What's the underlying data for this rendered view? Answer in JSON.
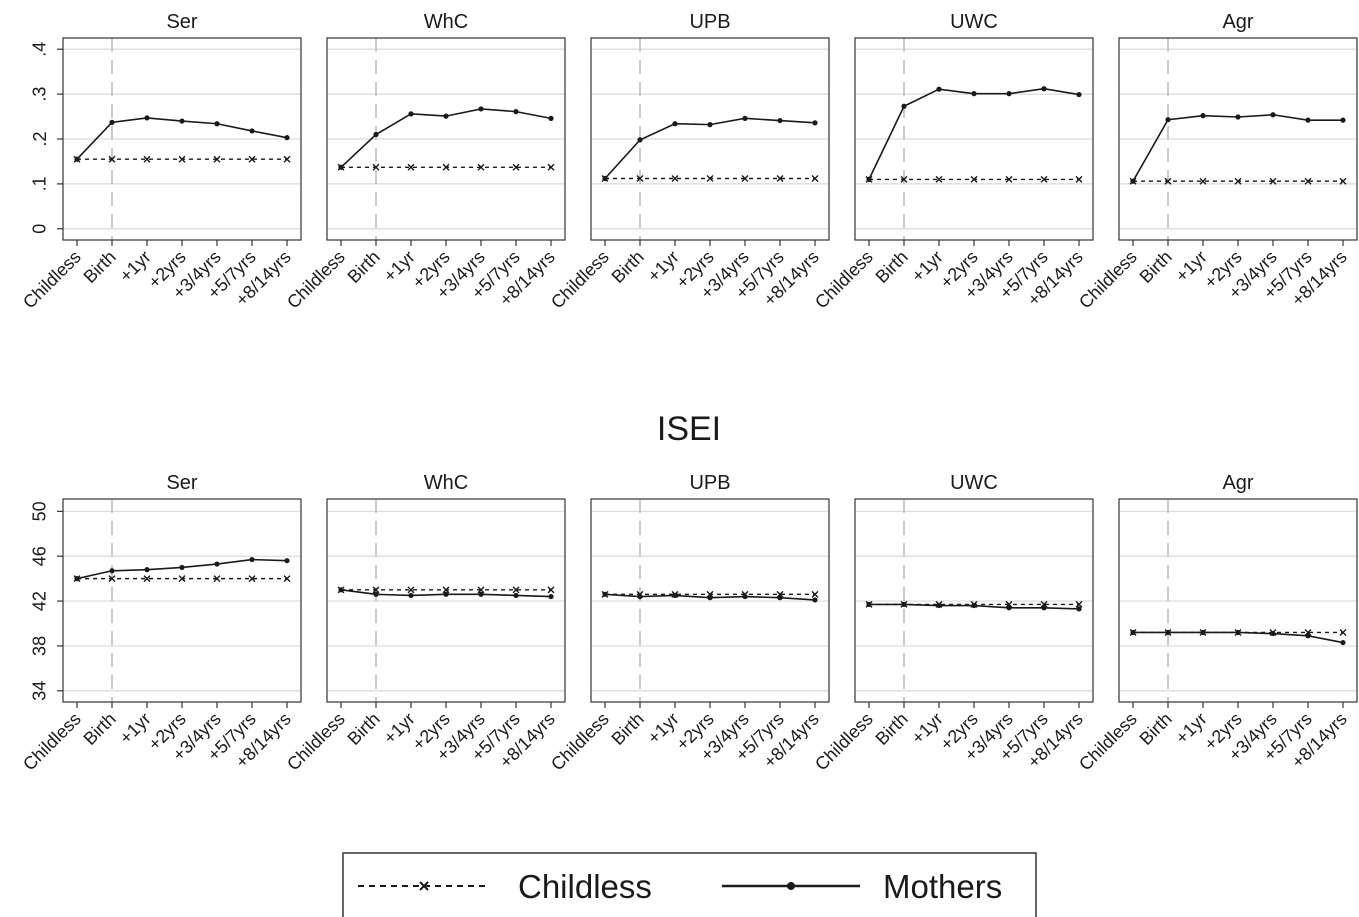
{
  "chart_data": [
    {
      "type": "line",
      "title": "",
      "x_categories": [
        "Childless",
        "Birth",
        "+1yr",
        "+2yrs",
        "+3/4yrs",
        "+5/7yrs",
        "+8/14yrs"
      ],
      "y_ticks": [
        {
          "value": 0,
          "label": "0"
        },
        {
          "value": 0.1,
          "label": ".1"
        },
        {
          "value": 0.2,
          "label": ".2"
        },
        {
          "value": 0.3,
          "label": ".3"
        },
        {
          "value": 0.4,
          "label": ".4"
        }
      ],
      "ylim": [
        -0.025,
        0.425
      ],
      "grid": true,
      "reference_line_category": "Birth",
      "panels": [
        {
          "title": "Ser",
          "series": [
            {
              "name": "Childless",
              "values": [
                0.155,
                0.155,
                0.155,
                0.155,
                0.155,
                0.155,
                0.155
              ]
            },
            {
              "name": "Mothers",
              "values": [
                0.155,
                0.237,
                0.247,
                0.24,
                0.234,
                0.218,
                0.203
              ]
            }
          ]
        },
        {
          "title": "WhC",
          "series": [
            {
              "name": "Childless",
              "values": [
                0.137,
                0.137,
                0.137,
                0.137,
                0.137,
                0.137,
                0.137
              ]
            },
            {
              "name": "Mothers",
              "values": [
                0.137,
                0.21,
                0.256,
                0.251,
                0.267,
                0.261,
                0.246
              ]
            }
          ]
        },
        {
          "title": "UPB",
          "series": [
            {
              "name": "Childless",
              "values": [
                0.112,
                0.112,
                0.112,
                0.112,
                0.112,
                0.112,
                0.112
              ]
            },
            {
              "name": "Mothers",
              "values": [
                0.112,
                0.198,
                0.234,
                0.232,
                0.246,
                0.241,
                0.236
              ]
            }
          ]
        },
        {
          "title": "UWC",
          "series": [
            {
              "name": "Childless",
              "values": [
                0.11,
                0.11,
                0.11,
                0.11,
                0.11,
                0.11,
                0.11
              ]
            },
            {
              "name": "Mothers",
              "values": [
                0.11,
                0.273,
                0.311,
                0.301,
                0.301,
                0.312,
                0.299
              ]
            }
          ]
        },
        {
          "title": "Agr",
          "series": [
            {
              "name": "Childless",
              "values": [
                0.106,
                0.106,
                0.106,
                0.106,
                0.106,
                0.106,
                0.106
              ]
            },
            {
              "name": "Mothers",
              "values": [
                0.106,
                0.243,
                0.252,
                0.249,
                0.254,
                0.242,
                0.242
              ]
            }
          ]
        }
      ]
    },
    {
      "type": "line",
      "title": "ISEI",
      "x_categories": [
        "Childless",
        "Birth",
        "+1yr",
        "+2yrs",
        "+3/4yrs",
        "+5/7yrs",
        "+8/14yrs"
      ],
      "y_ticks": [
        {
          "value": 34,
          "label": "34"
        },
        {
          "value": 38,
          "label": "38"
        },
        {
          "value": 42,
          "label": "42"
        },
        {
          "value": 46,
          "label": "46"
        },
        {
          "value": 50,
          "label": "50"
        }
      ],
      "ylim": [
        33,
        51.1
      ],
      "grid": true,
      "reference_line_category": "Birth",
      "panels": [
        {
          "title": "Ser",
          "series": [
            {
              "name": "Childless",
              "values": [
                44.0,
                44.0,
                44.0,
                44.0,
                44.0,
                44.0,
                44.0
              ]
            },
            {
              "name": "Mothers",
              "values": [
                44.0,
                44.7,
                44.8,
                45.0,
                45.3,
                45.7,
                45.6
              ]
            }
          ]
        },
        {
          "title": "WhC",
          "series": [
            {
              "name": "Childless",
              "values": [
                43.0,
                43.0,
                43.0,
                43.0,
                43.0,
                43.0,
                43.0
              ]
            },
            {
              "name": "Mothers",
              "values": [
                43.0,
                42.6,
                42.5,
                42.6,
                42.6,
                42.5,
                42.4
              ]
            }
          ]
        },
        {
          "title": "UPB",
          "series": [
            {
              "name": "Childless",
              "values": [
                42.6,
                42.6,
                42.6,
                42.6,
                42.6,
                42.6,
                42.6
              ]
            },
            {
              "name": "Mothers",
              "values": [
                42.6,
                42.4,
                42.5,
                42.3,
                42.4,
                42.3,
                42.1
              ]
            }
          ]
        },
        {
          "title": "UWC",
          "series": [
            {
              "name": "Childless",
              "values": [
                41.7,
                41.7,
                41.7,
                41.7,
                41.7,
                41.7,
                41.7
              ]
            },
            {
              "name": "Mothers",
              "values": [
                41.7,
                41.7,
                41.6,
                41.6,
                41.4,
                41.4,
                41.3
              ]
            }
          ]
        },
        {
          "title": "Agr",
          "series": [
            {
              "name": "Childless",
              "values": [
                39.2,
                39.2,
                39.2,
                39.2,
                39.2,
                39.2,
                39.2
              ]
            },
            {
              "name": "Mothers",
              "values": [
                39.2,
                39.2,
                39.2,
                39.2,
                39.1,
                38.9,
                38.3
              ]
            }
          ]
        }
      ]
    }
  ],
  "legend": {
    "placement": "bottom-center",
    "items": [
      {
        "label": "Childless",
        "style": "dashed",
        "marker": "x"
      },
      {
        "label": "Mothers",
        "style": "solid",
        "marker": "dot"
      }
    ]
  },
  "colors": {
    "line": "#1a1a1a",
    "grid": "#d9d9d9",
    "reference": "#bdbdbd",
    "frame": "#333333"
  }
}
